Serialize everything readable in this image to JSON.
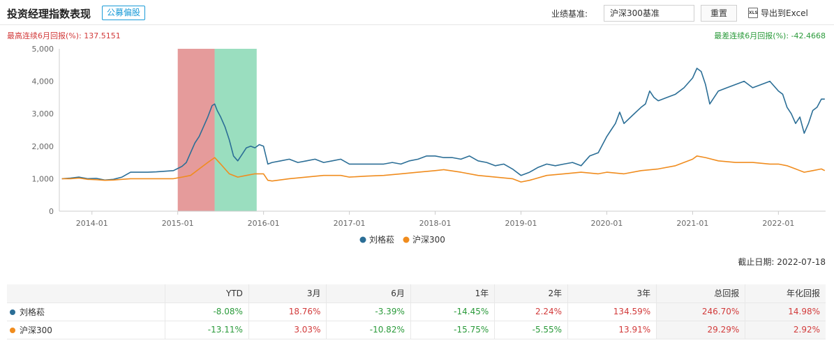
{
  "header": {
    "title": "投资经理指数表现",
    "tag": "公募偏股",
    "benchmark_label": "业绩基准:",
    "benchmark_value": "沪深300基准",
    "reset_label": "重置",
    "export_label": "导出到Excel",
    "export_icon_text": "XLS"
  },
  "summary": {
    "best_6m": "最高连续6月回报(%): 137.5151",
    "worst_6m": "最差连续6月回报(%): -42.4668"
  },
  "deadline": "截止日期: 2022-07-18",
  "colors": {
    "manager": "#2b6e96",
    "index": "#f08c1e",
    "best_band": "#e08a8a",
    "worst_band": "#6fd0a4",
    "positive": "#d23a3a",
    "negative": "#2a9a3a"
  },
  "chart_data": {
    "type": "line",
    "title": "",
    "xlabel": "",
    "ylabel": "",
    "ylim": [
      0,
      5000
    ],
    "yticks": [
      0,
      1000,
      2000,
      3000,
      4000,
      5000
    ],
    "ytick_labels": [
      "0",
      "1,000",
      "2,000",
      "3,000",
      "4,000",
      "5,000"
    ],
    "xlim": [
      2013.62,
      2022.55
    ],
    "xticks": [
      2014,
      2015,
      2016,
      2017,
      2018,
      2019,
      2020,
      2021,
      2022
    ],
    "xtick_labels": [
      "2014-01",
      "2015-01",
      "2016-01",
      "2017-01",
      "2018-01",
      "2019-01",
      "2020-01",
      "2021-01",
      "2022-01"
    ],
    "grid": false,
    "legend": "bottom-center",
    "best_period": [
      2015.0,
      2015.43
    ],
    "worst_period": [
      2015.43,
      2015.92
    ],
    "series": [
      {
        "name": "刘格菘",
        "color": "#2b6e96",
        "x": [
          2013.65,
          2013.75,
          2013.85,
          2013.95,
          2014.05,
          2014.15,
          2014.25,
          2014.35,
          2014.45,
          2014.55,
          2014.65,
          2014.75,
          2014.85,
          2014.95,
          2015.05,
          2015.1,
          2015.15,
          2015.2,
          2015.25,
          2015.3,
          2015.35,
          2015.4,
          2015.43,
          2015.46,
          2015.5,
          2015.55,
          2015.6,
          2015.65,
          2015.7,
          2015.75,
          2015.8,
          2015.85,
          2015.9,
          2015.95,
          2016.0,
          2016.05,
          2016.1,
          2016.2,
          2016.3,
          2016.4,
          2016.5,
          2016.6,
          2016.7,
          2016.8,
          2016.9,
          2017.0,
          2017.1,
          2017.2,
          2017.3,
          2017.4,
          2017.5,
          2017.6,
          2017.7,
          2017.8,
          2017.9,
          2018.0,
          2018.1,
          2018.2,
          2018.3,
          2018.4,
          2018.5,
          2018.6,
          2018.7,
          2018.8,
          2018.9,
          2019.0,
          2019.1,
          2019.2,
          2019.3,
          2019.4,
          2019.5,
          2019.6,
          2019.7,
          2019.8,
          2019.9,
          2020.0,
          2020.05,
          2020.1,
          2020.15,
          2020.2,
          2020.3,
          2020.4,
          2020.45,
          2020.5,
          2020.55,
          2020.6,
          2020.7,
          2020.8,
          2020.9,
          2021.0,
          2021.05,
          2021.1,
          2021.15,
          2021.2,
          2021.3,
          2021.4,
          2021.5,
          2021.6,
          2021.7,
          2021.8,
          2021.9,
          2022.0,
          2022.05,
          2022.1,
          2022.15,
          2022.2,
          2022.25,
          2022.3,
          2022.35,
          2022.4,
          2022.45,
          2022.5,
          2022.54
        ],
        "y": [
          1000,
          1020,
          1050,
          1000,
          1010,
          960,
          980,
          1050,
          1200,
          1200,
          1200,
          1210,
          1230,
          1250,
          1380,
          1500,
          1800,
          2100,
          2300,
          2600,
          2900,
          3250,
          3300,
          3100,
          2900,
          2600,
          2200,
          1700,
          1550,
          1750,
          1950,
          2000,
          1950,
          2050,
          2000,
          1450,
          1500,
          1550,
          1600,
          1500,
          1550,
          1600,
          1500,
          1550,
          1600,
          1450,
          1450,
          1450,
          1450,
          1450,
          1500,
          1450,
          1550,
          1600,
          1700,
          1700,
          1650,
          1650,
          1600,
          1700,
          1550,
          1500,
          1400,
          1450,
          1300,
          1100,
          1200,
          1350,
          1450,
          1400,
          1450,
          1500,
          1400,
          1700,
          1800,
          2300,
          2500,
          2700,
          3050,
          2700,
          2950,
          3200,
          3300,
          3700,
          3500,
          3400,
          3500,
          3600,
          3800,
          4100,
          4400,
          4300,
          3900,
          3300,
          3700,
          3800,
          3900,
          4000,
          3800,
          3900,
          4000,
          3700,
          3600,
          3200,
          3000,
          2700,
          2900,
          2400,
          2700,
          3100,
          3200,
          3450,
          3450
        ]
      },
      {
        "name": "沪深300",
        "color": "#f08c1e",
        "x": [
          2013.65,
          2013.75,
          2013.85,
          2013.95,
          2014.05,
          2014.15,
          2014.25,
          2014.35,
          2014.45,
          2014.55,
          2014.65,
          2014.75,
          2014.85,
          2014.95,
          2015.05,
          2015.15,
          2015.25,
          2015.35,
          2015.43,
          2015.5,
          2015.6,
          2015.7,
          2015.8,
          2015.9,
          2016.0,
          2016.05,
          2016.1,
          2016.3,
          2016.5,
          2016.7,
          2016.9,
          2017.0,
          2017.2,
          2017.4,
          2017.6,
          2017.8,
          2018.0,
          2018.1,
          2018.3,
          2018.5,
          2018.7,
          2018.9,
          2019.0,
          2019.1,
          2019.3,
          2019.5,
          2019.7,
          2019.9,
          2020.0,
          2020.2,
          2020.4,
          2020.6,
          2020.8,
          2021.0,
          2021.05,
          2021.15,
          2021.3,
          2021.5,
          2021.7,
          2021.9,
          2022.0,
          2022.1,
          2022.2,
          2022.3,
          2022.4,
          2022.5,
          2022.54
        ],
        "y": [
          1000,
          1000,
          1020,
          980,
          970,
          950,
          960,
          980,
          1000,
          1000,
          1000,
          1000,
          1000,
          1000,
          1050,
          1100,
          1300,
          1500,
          1650,
          1450,
          1150,
          1050,
          1100,
          1150,
          1150,
          950,
          930,
          1000,
          1050,
          1100,
          1100,
          1050,
          1080,
          1100,
          1150,
          1200,
          1250,
          1280,
          1200,
          1100,
          1050,
          1000,
          900,
          950,
          1100,
          1150,
          1200,
          1150,
          1200,
          1150,
          1250,
          1300,
          1400,
          1600,
          1700,
          1650,
          1550,
          1500,
          1500,
          1450,
          1450,
          1400,
          1300,
          1200,
          1250,
          1300,
          1250
        ]
      }
    ]
  },
  "table": {
    "headers": [
      "",
      "YTD",
      "3月",
      "6月",
      "1年",
      "2年",
      "3年",
      "总回报",
      "年化回报"
    ],
    "rows": [
      {
        "name": "刘格菘",
        "color": "#2b6e96",
        "values": [
          "-8.08%",
          "18.76%",
          "-3.39%",
          "-14.45%",
          "2.24%",
          "134.59%",
          "246.70%",
          "14.98%"
        ]
      },
      {
        "name": "沪深300",
        "color": "#f08c1e",
        "values": [
          "-13.11%",
          "3.03%",
          "-10.82%",
          "-15.75%",
          "-5.55%",
          "13.91%",
          "29.29%",
          "2.92%"
        ]
      }
    ]
  }
}
